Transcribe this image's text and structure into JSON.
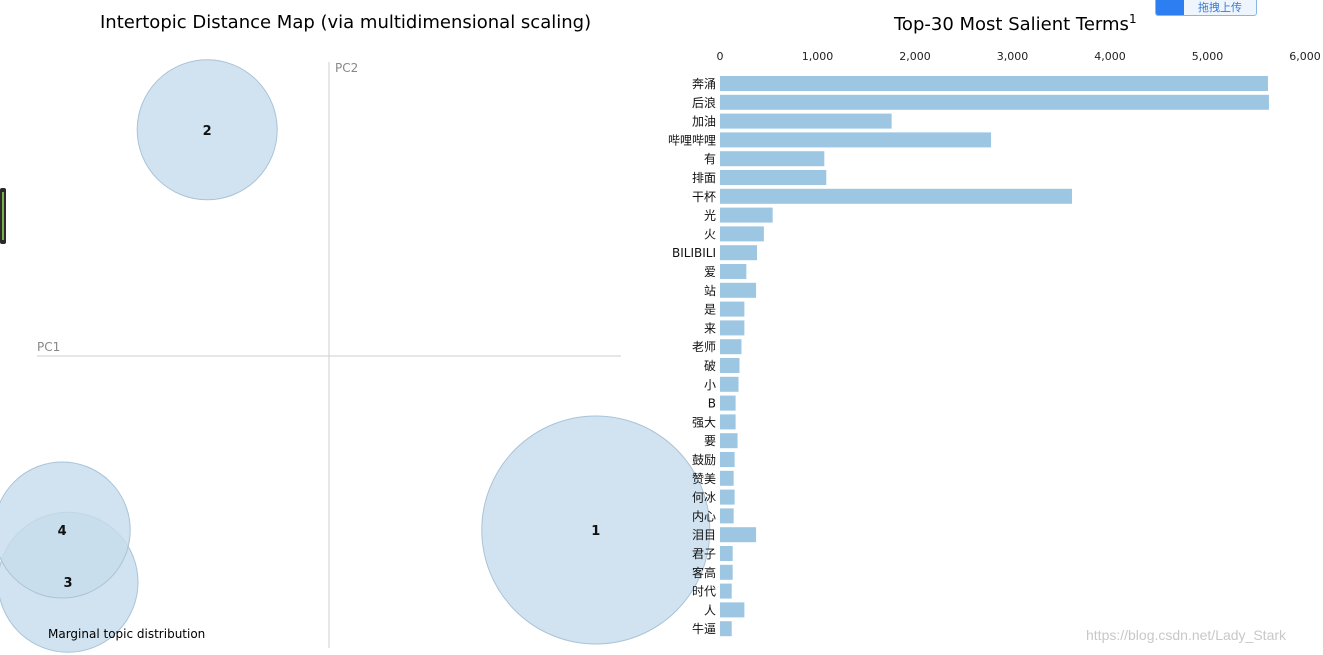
{
  "left_panel": {
    "title": "Intertopic Distance Map (via multidimensional scaling)",
    "x_axis_label": "PC1",
    "y_axis_label": "PC2",
    "legend_label": "Marginal topic distribution"
  },
  "right_panel": {
    "title": "Top-30 Most Salient Terms",
    "title_superscript": "1"
  },
  "upload_button": {
    "label": "拖拽上传"
  },
  "watermark": "https://blog.csdn.net/Lady_Stark",
  "colors": {
    "bubble_fill": "#c6dcec",
    "bubble_stroke": "#a9c3d8",
    "bar_fill": "#9cc6e2",
    "axis_line": "#cfcfcf"
  },
  "chart_data": [
    {
      "type": "scatter",
      "title": "Intertopic Distance Map (via multidimensional scaling)",
      "xlabel": "PC1",
      "ylabel": "PC2",
      "points": [
        {
          "label": "1",
          "x": 0.46,
          "y": -0.3
        },
        {
          "label": "2",
          "x": -0.21,
          "y": 0.39
        },
        {
          "label": "3",
          "x": -0.45,
          "y": -0.39
        },
        {
          "label": "4",
          "x": -0.46,
          "y": -0.3
        }
      ],
      "xlim": [
        -0.55,
        0.55
      ],
      "ylim": [
        -0.55,
        0.55
      ],
      "legend": "Marginal topic distribution"
    },
    {
      "type": "bar",
      "orientation": "horizontal",
      "title": "Top-30 Most Salient Terms",
      "categories": [
        "奔涌",
        "后浪",
        "加油",
        "哔哩哔哩",
        "有",
        "排面",
        "干杯",
        "光",
        "火",
        "BILIBILI",
        "爱",
        "站",
        "是",
        "来",
        "老师",
        "破",
        "小",
        "B",
        "强大",
        "要",
        "鼓励",
        "赞美",
        "何冰",
        "内心",
        "泪目",
        "君子",
        "客高",
        "时代",
        "人",
        "牛逼"
      ],
      "values": [
        5620,
        5630,
        1760,
        2780,
        1070,
        1090,
        3610,
        540,
        450,
        380,
        270,
        370,
        250,
        250,
        220,
        200,
        190,
        160,
        160,
        180,
        150,
        140,
        150,
        140,
        370,
        130,
        130,
        120,
        250,
        120
      ],
      "xlim": [
        0,
        6000
      ],
      "xticks": [
        "0",
        "1,000",
        "2,000",
        "3,000",
        "4,000",
        "5,000",
        "6,000"
      ],
      "grid": false
    }
  ]
}
